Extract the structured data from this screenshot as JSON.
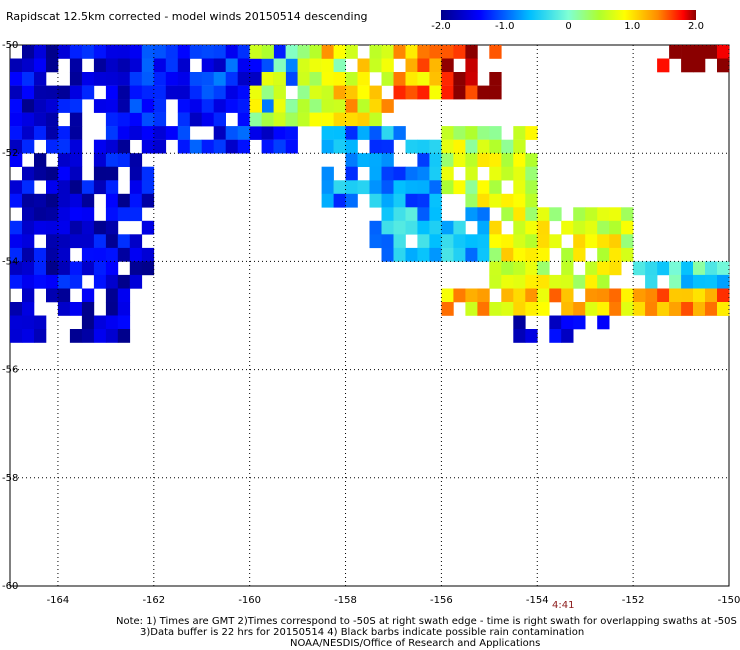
{
  "title": "Rapidscat 12.5km corrected - model winds 20150514 descending",
  "colorbar": {
    "ticks": [
      {
        "label": "-2.0",
        "value": -2.0
      },
      {
        "label": "-1.0",
        "value": -1.0
      },
      {
        "label": "0",
        "value": 0
      },
      {
        "label": "1.0",
        "value": 1.0
      },
      {
        "label": "2.0",
        "value": 2.0
      }
    ],
    "range": [
      -2.0,
      2.0
    ]
  },
  "map": {
    "lon_ticks": [
      "-164",
      "-162",
      "-160",
      "-158",
      "-156",
      "-154",
      "-152",
      "-150"
    ],
    "lat_ticks": [
      "-50",
      "-52",
      "-54",
      "-56",
      "-58",
      "-60"
    ],
    "lon_range": [
      -165,
      -150
    ],
    "lat_range": [
      -60,
      -50
    ],
    "grid": true,
    "time_label": "4:41"
  },
  "notes": {
    "line1": "Note: 1) Times are GMT 2)Times correspond to -50S at right swath edge - time is right swath for overlapping swaths at -50S",
    "line2": "3)Data buffer is 22 hrs for 20150514 4) Black barbs indicate possible rain contamination",
    "line3": "NOAA/NESDIS/Office of Research and Applications"
  },
  "chart_data": {
    "type": "heatmap",
    "title": "Rapidscat 12.5km corrected - model winds 20150514 descending",
    "xlabel": "",
    "ylabel": "",
    "xlim": [
      -165,
      -150
    ],
    "ylim": [
      -60,
      -50
    ],
    "value_range": [
      -2.0,
      2.0
    ],
    "grid": true,
    "cell_size_deg": 0.25,
    "regions": [
      {
        "lon": [
          -165.0,
          -162.0
        ],
        "lat": [
          -54.5,
          -50.0
        ],
        "value": -1.6
      },
      {
        "lon": [
          -165.0,
          -162.5
        ],
        "lat": [
          -55.5,
          -54.5
        ],
        "value": -1.8
      },
      {
        "lon": [
          -162.5,
          -159.0
        ],
        "lat": [
          -52.0,
          -50.0
        ],
        "value": -1.3
      },
      {
        "lon": [
          -160.0,
          -158.0
        ],
        "lat": [
          -51.5,
          -50.0
        ],
        "value": 0.5
      },
      {
        "lon": [
          -158.5,
          -157.0
        ],
        "lat": [
          -51.5,
          -50.0
        ],
        "value": 1.0
      },
      {
        "lon": [
          -157.0,
          -156.0
        ],
        "lat": [
          -51.0,
          -50.0
        ],
        "value": 1.3
      },
      {
        "lon": [
          -156.0,
          -154.8
        ],
        "lat": [
          -51.0,
          -50.0
        ],
        "value": 2.0
      },
      {
        "lon": [
          -158.5,
          -156.0
        ],
        "lat": [
          -53.0,
          -51.5
        ],
        "value": -0.8
      },
      {
        "lon": [
          -156.0,
          -154.0
        ],
        "lat": [
          -53.0,
          -51.5
        ],
        "value": 0.6
      },
      {
        "lon": [
          -157.5,
          -155.0
        ],
        "lat": [
          -54.0,
          -53.0
        ],
        "value": -0.6
      },
      {
        "lon": [
          -155.0,
          -152.0
        ],
        "lat": [
          -54.5,
          -53.0
        ],
        "value": 0.7
      },
      {
        "lon": [
          -152.0,
          -150.0
        ],
        "lat": [
          -54.5,
          -54.0
        ],
        "value": -0.3
      },
      {
        "lon": [
          -156.0,
          -150.0
        ],
        "lat": [
          -55.0,
          -54.5
        ],
        "value": 1.1
      },
      {
        "lon": [
          -154.5,
          -152.5
        ],
        "lat": [
          -55.5,
          -55.0
        ],
        "value": -1.5
      },
      {
        "lon": [
          -152.0,
          -150.0
        ],
        "lat": [
          -55.0,
          -54.5
        ],
        "value": 1.4
      },
      {
        "lon": [
          -151.5,
          -150.0
        ],
        "lat": [
          -50.5,
          -50.0
        ],
        "value": 2.0
      }
    ]
  }
}
